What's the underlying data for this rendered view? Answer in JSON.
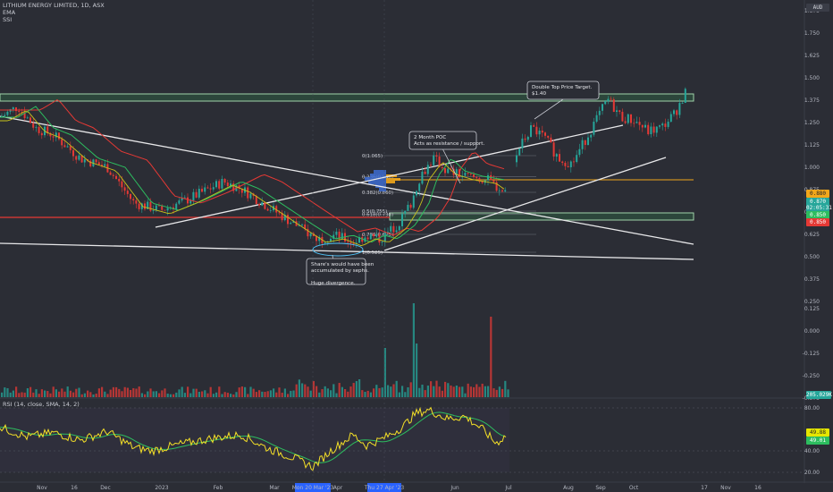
{
  "header": {
    "title": "LITHIUM ENERGY LIMITED, 1D, ASX",
    "indicator_1": "EMA",
    "indicator_2": "SSI",
    "currency": "AUD"
  },
  "price_axis": {
    "ticks": [
      "2.125",
      "2.000",
      "1.875",
      "1.750",
      "1.625",
      "1.500",
      "1.375",
      "1.250",
      "1.125",
      "1.000",
      "0.875",
      "0.750",
      "0.625",
      "0.500",
      "0.375",
      "0.250"
    ],
    "tags": [
      {
        "text": "0.880",
        "bg": "#f2a71b",
        "fg": "#1e1f24"
      },
      {
        "text": "0.870",
        "bg": "#26a69a",
        "fg": "#ffffff"
      },
      {
        "text": "02:05:31",
        "bg": "#26a69a",
        "fg": "#ffffff"
      },
      {
        "text": "0.850",
        "bg": "#2dbd5f",
        "fg": "#ffffff"
      },
      {
        "text": "0.850",
        "bg": "#e53935",
        "fg": "#ffffff"
      }
    ]
  },
  "volume_axis": {
    "ticks": [
      "0.125",
      "0.000",
      "-0.125",
      "-0.250",
      "-0.375"
    ],
    "tag": "205.029K"
  },
  "rsi": {
    "label": "RSI (14, close, SMA, 14, 2)",
    "ticks": [
      "80.00",
      "40.00",
      "20.00"
    ],
    "tags": [
      {
        "text": "49.88",
        "bg": "#e6e600",
        "fg": "#1e1f24"
      },
      {
        "text": "49.01",
        "bg": "#2dbd5f",
        "fg": "#ffffff"
      }
    ]
  },
  "x_axis": {
    "labels": [
      "Nov",
      "16",
      "Dec",
      "2023",
      "Feb",
      "Mar",
      "Apr",
      "Jun",
      "Jul",
      "Aug",
      "Sep",
      "Oct",
      "17",
      "Nov",
      "16"
    ],
    "highlights": [
      "Mon 20 Mar '23",
      "Thu 27 Apr '23"
    ]
  },
  "annotations": {
    "double_top": [
      "Double Top Price Target.",
      "$1.40"
    ],
    "poc": [
      "2 Month POC",
      "Acts as resistance / support."
    ],
    "seph": [
      "Share's would have been",
      "accumulated by sephs.",
      "",
      "Huge divergence."
    ]
  },
  "fib_levels": [
    "0(1.065)",
    "0.236(0.948)",
    "0.382(0.860)",
    "0.5(0.755)",
    "0.618(0.738)",
    "0.786(0.625)",
    "1(0.525)"
  ],
  "colors": {
    "bg": "#2b2d35",
    "up": "#26a69a",
    "down": "#e53935",
    "ema_red": "#e53935",
    "ema_green": "#2dbd5f",
    "ema_yellow": "#c7c21a",
    "rsi": "#f5e027",
    "rsi_ma": "#2dbd5f",
    "orange": "#f2a71b",
    "zone": "#2e5b40"
  },
  "chart_data": {
    "type": "line",
    "title": "LITHIUM ENERGY LIMITED, 1D, ASX",
    "price_ylim": [
      0.2,
      2.2
    ],
    "x": [
      "Nov",
      "Dec",
      "2023",
      "Feb",
      "Mar",
      "Apr",
      "Jun",
      "Jul",
      "Aug",
      "Sep"
    ],
    "series": [
      {
        "name": "price",
        "values": [
          1.3,
          1.18,
          0.95,
          1.0,
          0.8,
          0.62,
          0.85,
          1.25,
          1.3,
          1.38
        ]
      },
      {
        "name": "RSI (14, close, SMA, 14, 2)",
        "values": [
          58,
          45,
          47,
          51,
          28,
          25,
          65,
          70,
          64,
          48
        ]
      }
    ],
    "annotations": [
      "Double Top Price Target. $1.40",
      "2 Month POC Acts as resistance / support.",
      "Share's would have been accumulated by sephs. Huge divergence."
    ]
  }
}
